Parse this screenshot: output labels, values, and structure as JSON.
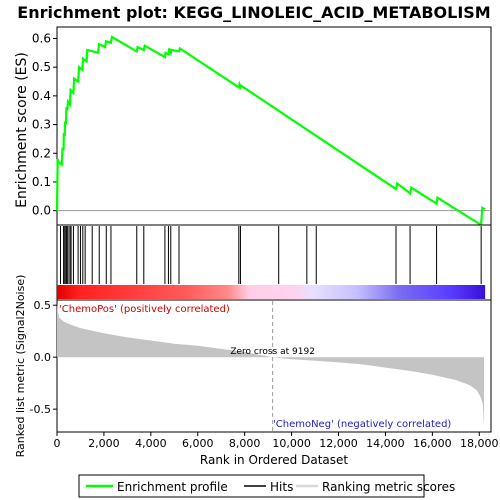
{
  "chart_data": {
    "type": "line",
    "title": "Enrichment plot: KEGG_LINOLEIC_ACID_METABOLISM",
    "es_panel": {
      "ylabel": "Enrichment score (ES)",
      "xlim": [
        0,
        18500
      ],
      "ylim": [
        -0.05,
        0.64
      ],
      "yticks": [
        0.0,
        0.1,
        0.2,
        0.3,
        0.4,
        0.5,
        0.6
      ],
      "ytick_labels": [
        "0.0",
        "0.1",
        "0.2",
        "0.3",
        "0.4",
        "0.5",
        "0.6"
      ],
      "line_color": "#00ff00",
      "series": [
        {
          "name": "Enrichment profile",
          "x": [
            0,
            30,
            60,
            200,
            240,
            280,
            290,
            330,
            340,
            380,
            400,
            440,
            470,
            550,
            580,
            700,
            730,
            900,
            940,
            1080,
            1110,
            1260,
            1290,
            1750,
            1790,
            2050,
            2090,
            2300,
            2340,
            3400,
            3430,
            3700,
            3740,
            4600,
            4630,
            4750,
            4780,
            4850,
            4880,
            5200,
            5240,
            7750,
            7780,
            7820,
            7850,
            14450,
            14500,
            15050,
            15100,
            16180,
            16220,
            18080,
            18130,
            18250
          ],
          "y": [
            0.0,
            0.18,
            0.17,
            0.16,
            0.22,
            0.21,
            0.27,
            0.26,
            0.31,
            0.3,
            0.36,
            0.35,
            0.38,
            0.37,
            0.42,
            0.41,
            0.46,
            0.45,
            0.5,
            0.49,
            0.53,
            0.52,
            0.56,
            0.55,
            0.58,
            0.57,
            0.59,
            0.585,
            0.605,
            0.555,
            0.57,
            0.56,
            0.575,
            0.535,
            0.55,
            0.545,
            0.565,
            0.55,
            0.56,
            0.555,
            0.565,
            0.43,
            0.44,
            0.43,
            0.435,
            0.075,
            0.095,
            0.06,
            0.08,
            0.025,
            0.045,
            -0.05,
            0.01,
            0.005
          ]
        }
      ]
    },
    "hits_panel": {
      "hit_positions": [
        150,
        280,
        330,
        380,
        420,
        470,
        550,
        600,
        700,
        900,
        1000,
        1100,
        1200,
        1500,
        1800,
        2100,
        2300,
        3400,
        3700,
        4600,
        4750,
        4850,
        5200,
        7750,
        7820,
        9450,
        10650,
        11050,
        14450,
        15050,
        16180,
        18080
      ],
      "color_bar_stops": [
        {
          "pos": 0.0,
          "color": "#e00000"
        },
        {
          "pos": 0.05,
          "color": "#ff2020"
        },
        {
          "pos": 0.3,
          "color": "#ff5a5a"
        },
        {
          "pos": 0.4,
          "color": "#ff8a8a"
        },
        {
          "pos": 0.45,
          "color": "#ffcfe6"
        },
        {
          "pos": 0.55,
          "color": "#ffd2ee"
        },
        {
          "pos": 0.6,
          "color": "#e6e0ff"
        },
        {
          "pos": 0.7,
          "color": "#c6c0ff"
        },
        {
          "pos": 0.8,
          "color": "#7a6cf0"
        },
        {
          "pos": 0.92,
          "color": "#5a3cff"
        },
        {
          "pos": 1.0,
          "color": "#3a10d8"
        }
      ]
    },
    "metric_panel": {
      "ylabel": "Ranked list metric (Signal2Noise)",
      "xlabel": "Rank in Ordered Dataset",
      "xlim": [
        0,
        18500
      ],
      "ylim": [
        -0.72,
        0.55
      ],
      "yticks": [
        0.5,
        0.0,
        -0.5
      ],
      "ytick_labels": [
        "0.5",
        "0.0",
        "-0.5"
      ],
      "xticks": [
        0,
        2000,
        4000,
        6000,
        8000,
        10000,
        12000,
        14000,
        16000,
        18000
      ],
      "xtick_labels": [
        "0",
        "2,000",
        "4,000",
        "6,000",
        "8,000",
        "10,000",
        "12,000",
        "14,000",
        "16,000",
        "18,000"
      ],
      "metric_x": [
        0,
        20,
        100,
        300,
        600,
        1000,
        2000,
        3000,
        4000,
        5000,
        6000,
        7000,
        8000,
        9192,
        10000,
        11000,
        12000,
        13000,
        14000,
        15000,
        16000,
        17000,
        17600,
        17900,
        18050,
        18150,
        18200
      ],
      "metric_y": [
        0.52,
        0.45,
        0.38,
        0.34,
        0.31,
        0.28,
        0.23,
        0.19,
        0.16,
        0.13,
        0.11,
        0.08,
        0.05,
        0.0,
        -0.02,
        -0.035,
        -0.05,
        -0.07,
        -0.1,
        -0.13,
        -0.17,
        -0.22,
        -0.27,
        -0.32,
        -0.38,
        -0.45,
        -0.67
      ],
      "zero_cross_rank": 9192,
      "zero_cross_label": "Zero cross at 9192",
      "pos_label": "'ChemoPos' (positively correlated)",
      "neg_label": "'ChemoNeg' (negatively correlated)"
    },
    "legend": {
      "placement": "bottom",
      "items": [
        {
          "label": "Enrichment profile",
          "color": "#00ff00"
        },
        {
          "label": "Hits",
          "color": "#000000"
        },
        {
          "label": "Ranking metric scores",
          "color": "#d8d8d8"
        }
      ]
    }
  }
}
